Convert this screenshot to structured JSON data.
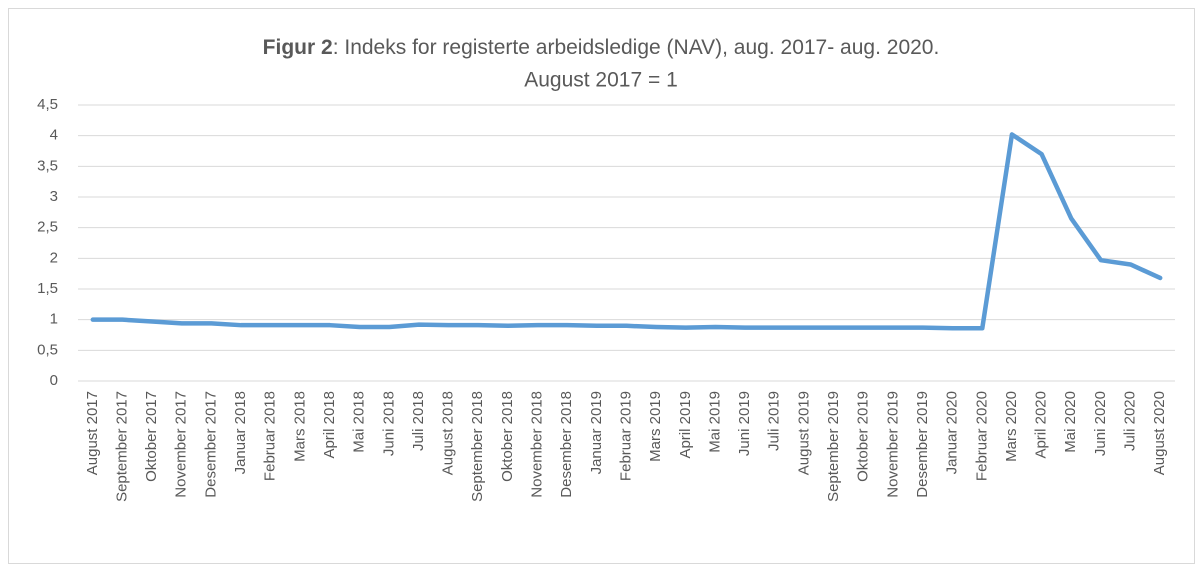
{
  "chart_data": {
    "type": "line",
    "title_prefix": "Figur 2",
    "title": ": Indeks for registerte arbeidsledige (NAV), aug. 2017- aug. 2020.",
    "subtitle": "August 2017 = 1",
    "categories": [
      "August 2017",
      "September 2017",
      "Oktober 2017",
      "November 2017",
      "Desember 2017",
      "Januar 2018",
      "Februar 2018",
      "Mars 2018",
      "April 2018",
      "Mai 2018",
      "Juni 2018",
      "Juli 2018",
      "August 2018",
      "September 2018",
      "Oktober 2018",
      "November 2018",
      "Desember 2018",
      "Januar 2019",
      "Februar 2019",
      "Mars 2019",
      "April 2019",
      "Mai 2019",
      "Juni 2019",
      "Juli 2019",
      "August 2019",
      "September 2019",
      "Oktober 2019",
      "November 2019",
      "Desember 2019",
      "Januar 2020",
      "Februar 2020",
      "Mars 2020",
      "April 2020",
      "Mai 2020",
      "Juni 2020",
      "Juli 2020",
      "August 2020"
    ],
    "values": [
      1.0,
      1.0,
      0.97,
      0.94,
      0.94,
      0.91,
      0.91,
      0.91,
      0.91,
      0.88,
      0.88,
      0.92,
      0.91,
      0.91,
      0.9,
      0.91,
      0.91,
      0.9,
      0.9,
      0.88,
      0.87,
      0.88,
      0.87,
      0.87,
      0.87,
      0.87,
      0.87,
      0.87,
      0.87,
      0.86,
      0.86,
      4.02,
      3.7,
      2.65,
      1.97,
      1.9,
      1.68
    ],
    "color": "#5b9bd5",
    "ylim": [
      0,
      4.5
    ],
    "yticks": [
      0,
      {
        "value": 0.5,
        "label": "0,5"
      },
      1,
      {
        "value": 1.5,
        "label": "1,5"
      },
      2,
      {
        "value": 2.5,
        "label": "2,5"
      },
      3,
      {
        "value": 3.5,
        "label": "3,5"
      },
      4,
      {
        "value": 4.5,
        "label": "4,5"
      }
    ],
    "grid": true
  }
}
